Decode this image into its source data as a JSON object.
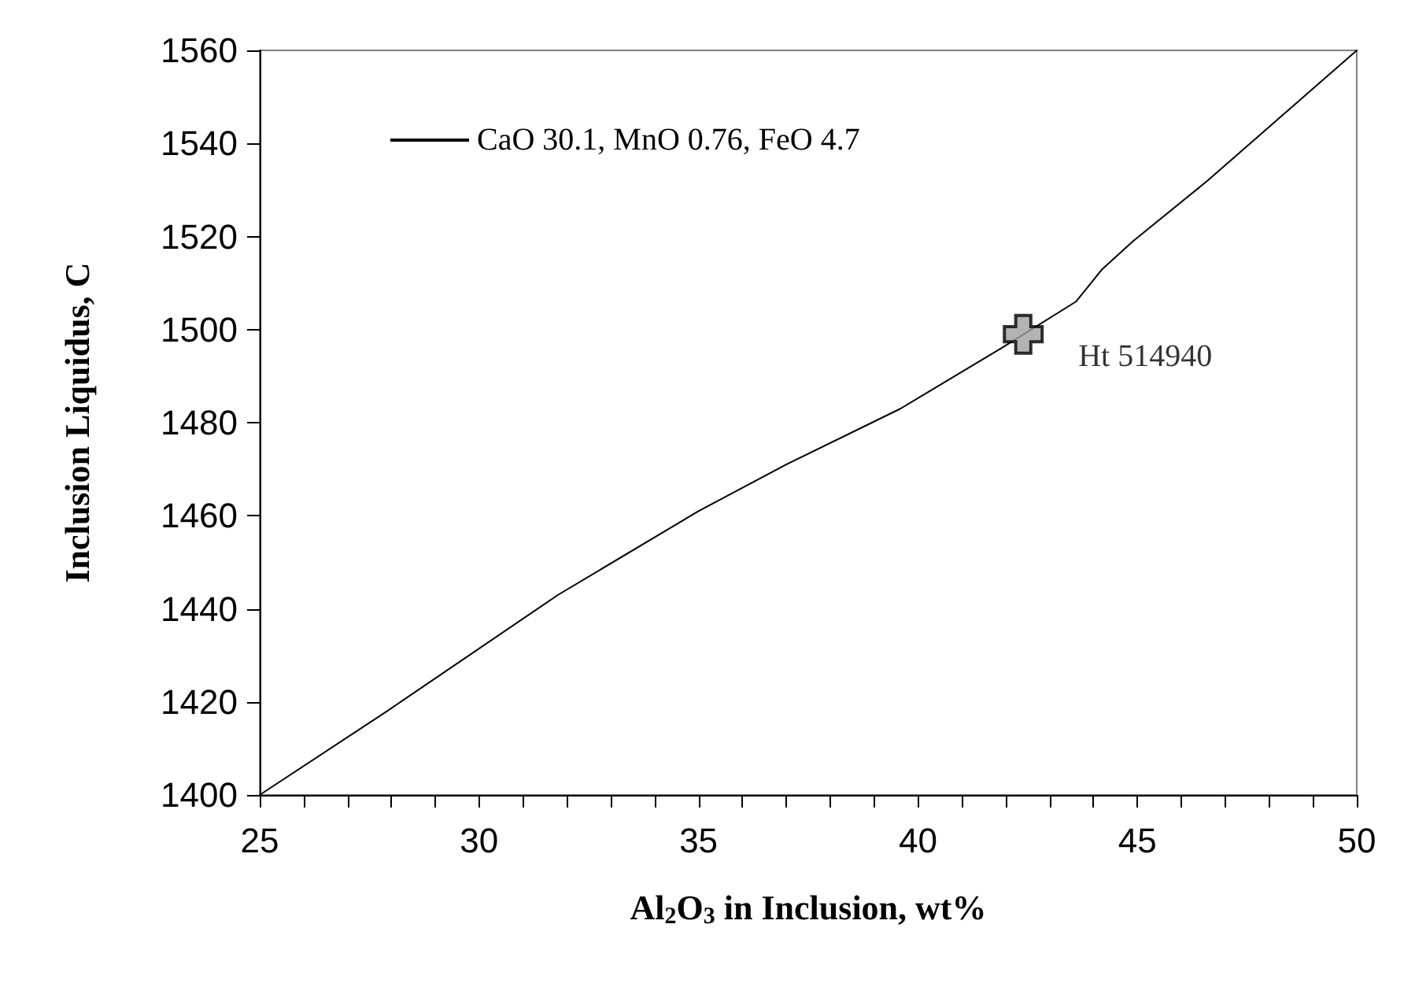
{
  "chart_data": {
    "type": "line",
    "xlabel": "Al$_{2}$O$_{3}$ in Inclusion, wt%",
    "ylabel": "Inclusion Liquidus, C",
    "series": [
      {
        "name": "CaO 30.1, MnO 0.76, FeO 4.7",
        "color": "#000000",
        "marker": "none",
        "line_style": "solid",
        "x": [
          25,
          27.9,
          31.8,
          35,
          37,
          39.6,
          41.9,
          43.6,
          44.2,
          44.9,
          46.6,
          50
        ],
        "values": [
          1400,
          1418,
          1443,
          1461,
          1471,
          1483,
          1496,
          1506,
          1513,
          1519,
          1532,
          1560
        ]
      },
      {
        "color": "#a0a0a0",
        "type": "scatter",
        "marker": "cross",
        "x": [
          42.4
        ],
        "values": [
          1499
        ]
      }
    ],
    "annotations": [
      {
        "text": "Ht 514940",
        "x": 42.4,
        "y": 1499
      }
    ],
    "xlim": [
      25,
      50
    ],
    "xticks": [
      25,
      30,
      35,
      40,
      45,
      50
    ],
    "ylim": [
      1400,
      1560
    ],
    "yticks": [
      1400,
      1420,
      1440,
      1460,
      1480,
      1500,
      1520,
      1540,
      1560
    ],
    "grid": false,
    "legend": "top left"
  }
}
